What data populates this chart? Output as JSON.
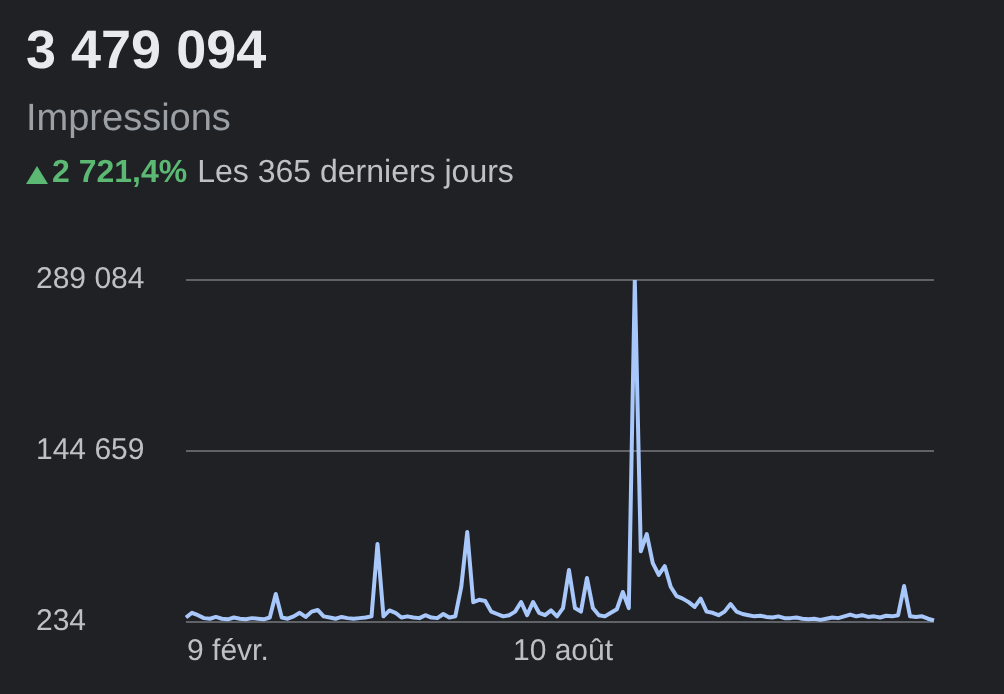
{
  "chart_data": {
    "type": "line",
    "title": "3 479 094",
    "subtitle": "Impressions",
    "annotations": [
      "2 721,4%",
      "Les 365 derniers jours"
    ],
    "categories": [
      null,
      null,
      null,
      null,
      null,
      null,
      null,
      "9 févr.",
      null,
      null,
      null,
      null,
      null,
      null,
      null,
      null,
      null,
      null,
      null,
      null,
      null,
      null,
      null,
      null,
      null,
      null,
      null,
      null,
      null,
      null,
      null,
      null,
      null,
      null,
      null,
      null,
      null,
      null,
      null,
      null,
      null,
      null,
      null,
      null,
      null,
      null,
      null,
      null,
      null,
      null,
      null,
      null,
      null,
      null,
      null,
      null,
      null,
      null,
      null,
      null,
      null,
      null,
      null,
      "10 août",
      null,
      null,
      null,
      null,
      null,
      null,
      null,
      null,
      null,
      null,
      null,
      null,
      null,
      null,
      null,
      null,
      null,
      null,
      null,
      null,
      null,
      null,
      null,
      null,
      null,
      null,
      null,
      null,
      null,
      null,
      null,
      null,
      null,
      null,
      null,
      null,
      null,
      null,
      null,
      null,
      null,
      null,
      null,
      null,
      null,
      null,
      null,
      null,
      null,
      null,
      null,
      null,
      null,
      null,
      null,
      null,
      null,
      null,
      null,
      null,
      null,
      null
    ],
    "series": [
      {
        "color": "#a8c7fa",
        "values": [
          4000,
          8000,
          6000,
          3500,
          3000,
          4500,
          3000,
          2500,
          4000,
          3000,
          2500,
          3500,
          3000,
          2500,
          4000,
          23900,
          4000,
          3000,
          5000,
          8000,
          4500,
          9000,
          10400,
          5000,
          4000,
          3000,
          4500,
          3500,
          3000,
          3500,
          4000,
          5000,
          66100,
          5000,
          10000,
          8000,
          4000,
          5000,
          4000,
          3500,
          6000,
          4000,
          3500,
          7000,
          4000,
          5000,
          30000,
          76200,
          17000,
          19000,
          18000,
          9000,
          7000,
          5000,
          6000,
          9000,
          17100,
          6000,
          17100,
          8000,
          6000,
          10000,
          5000,
          12000,
          44100,
          12000,
          9000,
          37400,
          12000,
          6000,
          5000,
          8000,
          11000,
          25600,
          12000,
          289084,
          60000,
          74500,
          50000,
          40000,
          47500,
          30000,
          22000,
          20000,
          17000,
          13000,
          20000,
          9000,
          8000,
          6000,
          9000,
          15400,
          9000,
          7000,
          6000,
          5000,
          5500,
          4500,
          4000,
          5000,
          3500,
          3500,
          4000,
          3000,
          2500,
          3000,
          2000,
          3000,
          4000,
          3500,
          5000,
          6500,
          5000,
          6000,
          4500,
          5000,
          4000,
          5500,
          5000,
          6000,
          30600,
          5000,
          4500,
          5000,
          3000,
          1500
        ]
      }
    ],
    "ylim": [
      234,
      289084
    ],
    "yticks": [
      {
        "value": 234,
        "label": "234"
      },
      {
        "value": 144659,
        "label": "144 659"
      },
      {
        "value": 289084,
        "label": "289 084"
      }
    ],
    "grid": "y",
    "legend": false
  }
}
